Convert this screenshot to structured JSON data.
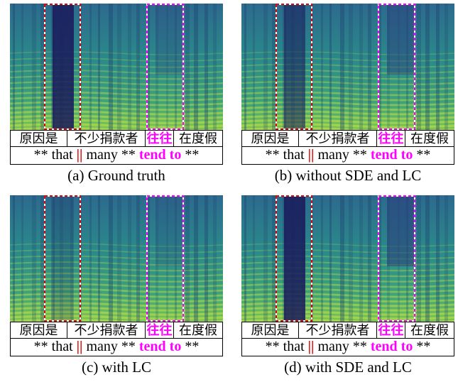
{
  "panels": [
    {
      "caption": "(a) Ground truth",
      "chinese": [
        "原因是",
        "不少捐款者",
        "往往",
        "在度假"
      ],
      "english": [
        "** that",
        "||",
        "many **",
        "tend to",
        "**"
      ]
    },
    {
      "caption": "(b) without SDE and LC",
      "chinese": [
        "原因是",
        "不少捐款者",
        "往往",
        "在度假"
      ],
      "english": [
        "** that",
        "||",
        "many **",
        "tend to",
        "**"
      ]
    },
    {
      "caption": "(c) with LC",
      "chinese": [
        "原因是",
        "不少捐款者",
        "往往",
        "在度假"
      ],
      "english": [
        "** that",
        "||",
        "many **",
        "tend to",
        "**"
      ]
    },
    {
      "caption": "(d) with SDE and LC",
      "chinese": [
        "原因是",
        "不少捐款者",
        "往往",
        "在度假"
      ],
      "english": [
        "** that",
        "||",
        "many **",
        "tend to",
        "**"
      ]
    }
  ]
}
